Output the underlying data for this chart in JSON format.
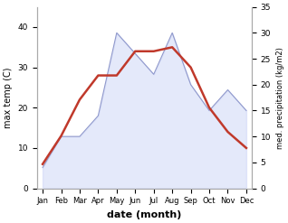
{
  "months": [
    "Jan",
    "Feb",
    "Mar",
    "Apr",
    "May",
    "Jun",
    "Jul",
    "Aug",
    "Sep",
    "Oct",
    "Nov",
    "Dec"
  ],
  "temp": [
    6,
    13,
    22,
    28,
    28,
    34,
    34,
    35,
    30,
    20,
    14,
    10
  ],
  "precip": [
    4,
    10,
    10,
    14,
    30,
    26,
    22,
    30,
    20,
    15,
    19,
    15
  ],
  "temp_color": "#c0392b",
  "precip_fill_color": "#c5cff5",
  "precip_edge_color": "#9099cc",
  "xlabel": "date (month)",
  "ylabel_left": "max temp (C)",
  "ylabel_right": "med. precipitation (kg/m2)",
  "ylim_left": [
    0,
    45
  ],
  "ylim_right": [
    0,
    35
  ],
  "yticks_left": [
    0,
    10,
    20,
    30,
    40
  ],
  "yticks_right": [
    0,
    5,
    10,
    15,
    20,
    25,
    30,
    35
  ]
}
